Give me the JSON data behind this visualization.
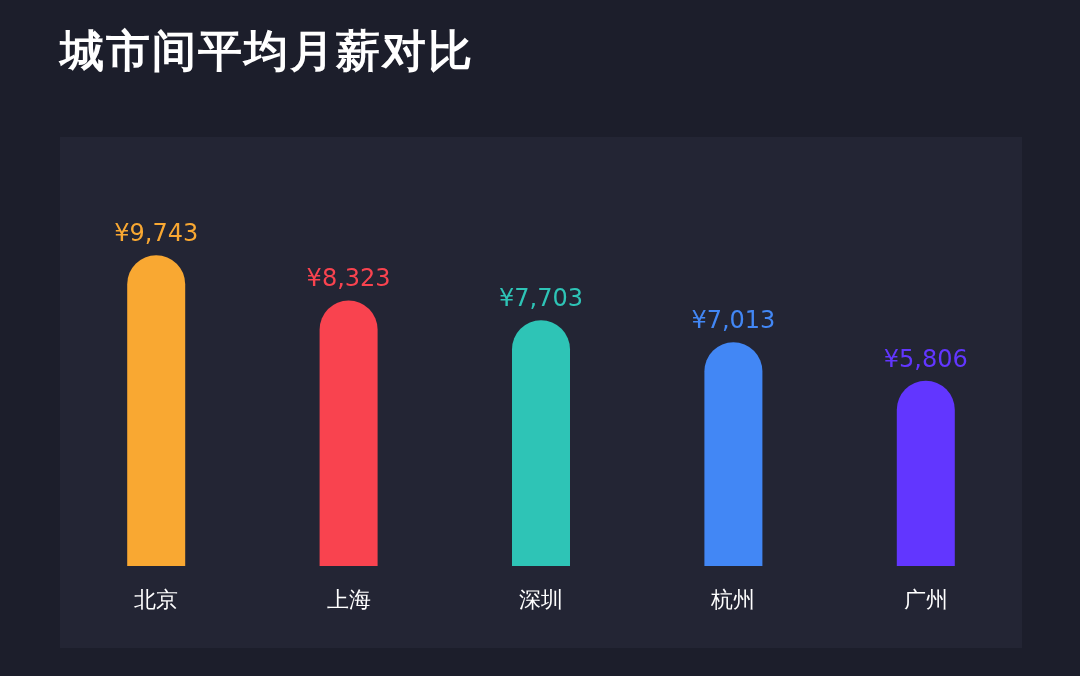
{
  "chart_data": {
    "type": "bar",
    "title": "城市间平均月薪对比",
    "categories": [
      "北京",
      "上海",
      "深圳",
      "杭州",
      "广州"
    ],
    "values": [
      9743,
      8323,
      7703,
      7013,
      5806
    ],
    "colors": [
      "#f9a832",
      "#f9434f",
      "#2ec4b6",
      "#4287f5",
      "#6236ff"
    ],
    "value_labels": [
      "¥9,743",
      "¥8,323",
      "¥7,703",
      "¥7,013",
      "¥5,806"
    ]
  }
}
